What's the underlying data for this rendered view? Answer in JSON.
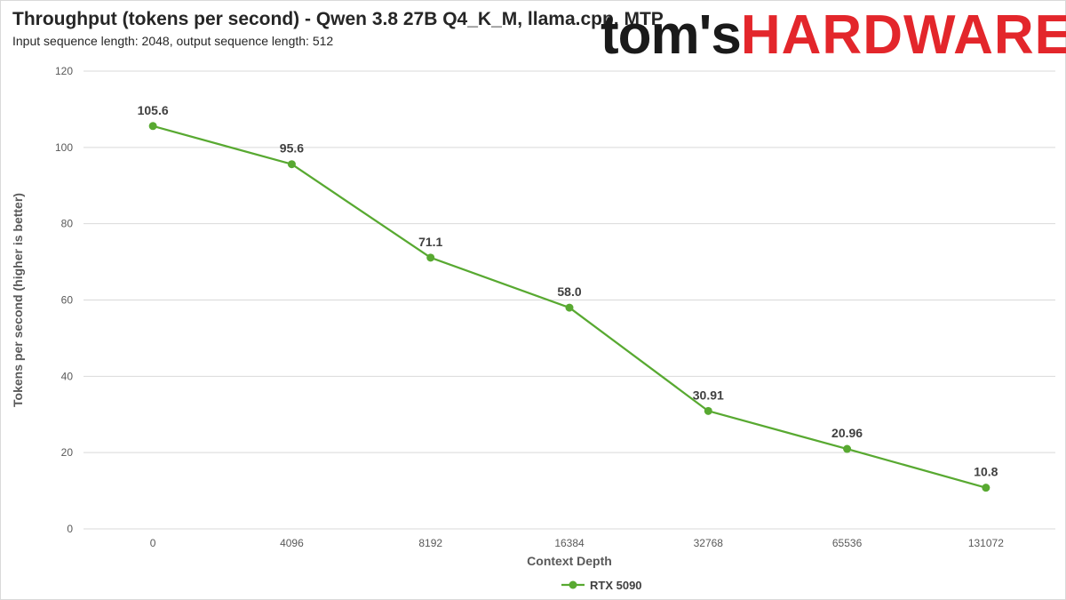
{
  "header": {
    "title": "Throughput (tokens per second) - Qwen 3.8 27B Q4_K_M, llama.cpp, MTP",
    "subtitle": "Input sequence length: 2048, output sequence length: 512"
  },
  "logo": {
    "part1": "tom's",
    "part2": "HARDWARE"
  },
  "colors": {
    "series": "#58a931",
    "gridline": "#d9d9d9",
    "logo_red": "#e3262b"
  },
  "chart_data": {
    "type": "line",
    "title": "Throughput (tokens per second) - Qwen 3.8 27B Q4_K_M, llama.cpp, MTP",
    "subtitle": "Input sequence length: 2048, output sequence length: 512",
    "xlabel": "Context Depth",
    "ylabel": "Tokens per second (higher is better)",
    "categories": [
      "0",
      "4096",
      "8192",
      "16384",
      "32768",
      "65536",
      "131072"
    ],
    "series": [
      {
        "name": "RTX 5090",
        "values": [
          105.6,
          95.6,
          71.1,
          58.0,
          30.91,
          20.96,
          10.8
        ],
        "labels": [
          "105.6",
          "95.6",
          "71.1",
          "58.0",
          "30.91",
          "20.96",
          "10.8"
        ]
      }
    ],
    "ylim": [
      0,
      120
    ],
    "yticks": [
      0,
      20,
      40,
      60,
      80,
      100,
      120
    ],
    "grid": true,
    "legend": "bottom"
  }
}
